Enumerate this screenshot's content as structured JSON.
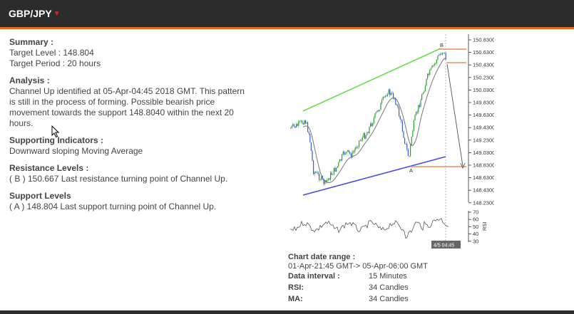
{
  "header": {
    "pair": "GBP/JPY",
    "arrow": "▼"
  },
  "summary": {
    "title": "Summary :",
    "target_level": "Target Level : 148.804",
    "target_period": "Target Period : 20 hours"
  },
  "analysis": {
    "title": "Analysis :",
    "text": "Channel Up identified at 05-Apr-04:45 2018 GMT. This pattern is still in the process of forming. Possible bearish price movement towards the support 148.8040 within the next 20 hours."
  },
  "supporting": {
    "title": "Supporting Indicators :",
    "text": "Downward sloping Moving Average"
  },
  "resistance": {
    "title": "Resistance Levels :",
    "text": "( B ) 150.667 Last resistance turning point of Channel Up."
  },
  "support": {
    "title": "Support Levels",
    "text": "( A ) 148.804 Last support turning point of Channel Up."
  },
  "chart": {
    "price_axis": [
      "150.8300",
      "150.6300",
      "150.4300",
      "150.2300",
      "150.0300",
      "149.8300",
      "149.6300",
      "149.4300",
      "149.2300",
      "149.0300",
      "148.8300",
      "148.6300",
      "148.4300",
      "148.2300"
    ],
    "rsi_axis": [
      "70",
      "60",
      "50",
      "40",
      "30"
    ],
    "rsi_label": "RSI",
    "time_label": "4/5 04:45",
    "point_a": "A",
    "point_b": "B",
    "colors": {
      "upper_line": "#66e04a",
      "lower_line": "#4a4adf",
      "level_line": "#f08a5d",
      "bull": "#2ca02c",
      "bear": "#3a5fcd",
      "ma": "#777777"
    }
  },
  "info": {
    "range_label": "Chart date range :",
    "range_value": "01-Apr-21:45 GMT-> 05-Apr-06:00 GMT",
    "interval_label": "Data interval :",
    "interval_value": "15 Minutes",
    "rsi_label": "RSI:",
    "rsi_value": "34 Candles",
    "ma_label": "MA:",
    "ma_value": "34 Candles"
  }
}
